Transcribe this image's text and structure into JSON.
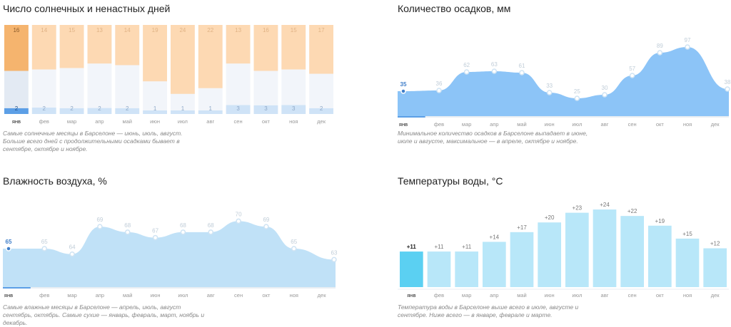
{
  "colors": {
    "sunny": "#fdd9b3",
    "sunny_active": "#f5b46e",
    "cloudy": "#f2f5fa",
    "cloudy_active": "#e3eaf3",
    "rain": "#cfe3f7",
    "rain_active": "#5c9fe6",
    "precip_fill": "#8cc4f7",
    "precip_fill_light": "#e4f2fd",
    "humidity_fill": "#c0e1f7",
    "humidity_fill_light": "#e8f4fc",
    "water_bar": "#b8e7f9",
    "water_bar_active": "#5bd0f2",
    "active_dot": "#3f7ec9",
    "axis": "#e9eef3",
    "axis_active": "#5c9fe6",
    "muted": "#999999"
  },
  "chart_data": [
    {
      "id": "sunny-days",
      "type": "bar",
      "title": "Число солнечных и ненастных дней",
      "categories": [
        "янв",
        "фев",
        "мар",
        "апр",
        "май",
        "июн",
        "июл",
        "авг",
        "сен",
        "окт",
        "ноя",
        "дек"
      ],
      "total_days": [
        31,
        28,
        31,
        30,
        31,
        30,
        31,
        31,
        30,
        31,
        30,
        31
      ],
      "series": [
        {
          "name": "",
          "values": [
            16,
            14,
            15,
            13,
            14,
            19,
            24,
            22,
            13,
            16,
            15,
            17
          ]
        },
        {
          "name": "",
          "values": [
            2,
            2,
            2,
            2,
            2,
            1,
            1,
            1,
            3,
            3,
            3,
            2
          ]
        }
      ],
      "selected": "янв",
      "note": "Самые солнечные месяцы в Барселоне — июнь, июль, август. Больше всего дней с продолжительными осадками бывает в сентябре, октябре и ноябре."
    },
    {
      "id": "precipitation",
      "type": "area",
      "title": "Количество осадков, мм",
      "categories": [
        "янв",
        "фев",
        "мар",
        "апр",
        "май",
        "июн",
        "июл",
        "авг",
        "сен",
        "окт",
        "ноя",
        "дек"
      ],
      "values": [
        35,
        36,
        62,
        63,
        61,
        33,
        25,
        30,
        57,
        89,
        97,
        38
      ],
      "ylim": [
        0,
        100
      ],
      "selected": "янв",
      "note": "Минимальное количество осадков в Барселоне выпадает в июне, июле и августе, максимальное — в апреле, октябре и ноябре."
    },
    {
      "id": "humidity",
      "type": "area",
      "title": "Влажность воздуха, %",
      "categories": [
        "янв",
        "фев",
        "мар",
        "апр",
        "май",
        "июн",
        "июл",
        "авг",
        "сен",
        "окт",
        "ноя",
        "дек"
      ],
      "values": [
        65,
        65,
        64,
        69,
        68,
        67,
        68,
        68,
        70,
        69,
        65,
        63
      ],
      "ylim": [
        58,
        72
      ],
      "selected": "янв",
      "note": "Самые влажные месяцы в Барселоне — апрель, июль, август сентябрь, октябрь. Самые сухие — январь, февраль, март, ноябрь и декабрь."
    },
    {
      "id": "water-temperature",
      "type": "bar",
      "title": "Температуры воды, °C",
      "categories": [
        "янв",
        "фев",
        "мар",
        "апр",
        "май",
        "июн",
        "июл",
        "авг",
        "сен",
        "окт",
        "ноя",
        "дек"
      ],
      "values": [
        11,
        11,
        11,
        14,
        17,
        20,
        23,
        24,
        22,
        19,
        15,
        12
      ],
      "labels": [
        "+11",
        "+11",
        "+11",
        "+14",
        "+17",
        "+20",
        "+23",
        "+24",
        "+22",
        "+19",
        "+15",
        "+12"
      ],
      "ylim": [
        0,
        26
      ],
      "selected": "янв",
      "note": "Температура воды в Барселоне выше всего в июле, августе и сентябре. Ниже всего — в январе, феврале и марте."
    }
  ]
}
